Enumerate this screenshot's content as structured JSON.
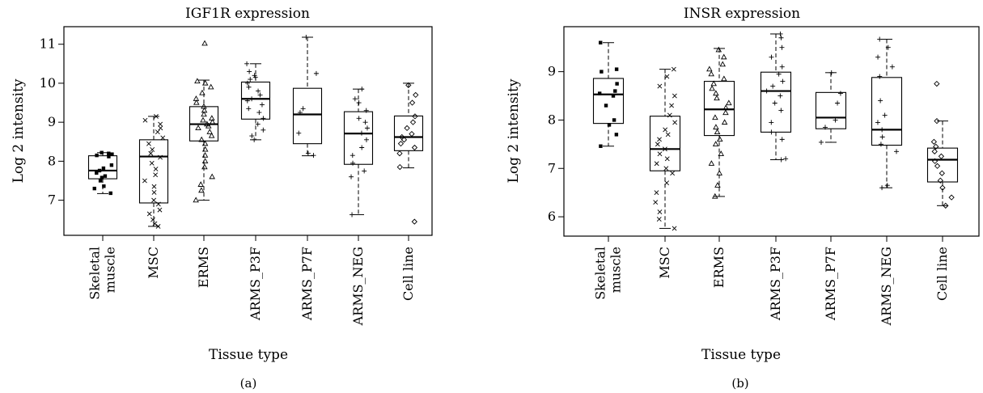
{
  "chart_data": [
    {
      "type": "box",
      "title": "IGF1R expression",
      "xlabel": "Tissue type",
      "ylabel": "Log 2 intensity",
      "panel_label": "(a)",
      "categories": [
        [
          "Skeletal",
          "muscle"
        ],
        [
          "MSC"
        ],
        [
          "ERMS"
        ],
        [
          "ARMS_P3F"
        ],
        [
          "ARMS_P7F"
        ],
        [
          "ARMS_NEG"
        ],
        [
          "Cell line"
        ]
      ],
      "ylim": [
        6.1,
        11.45
      ],
      "yticks": [
        7,
        8,
        9,
        10,
        11
      ],
      "boxes": [
        {
          "group": "Skeletal muscle",
          "marker": "square",
          "q1": 7.55,
          "median": 7.76,
          "q3": 8.14,
          "whisker_low": 7.17,
          "whisker_high": 8.22,
          "points": [
            7.18,
            7.3,
            7.36,
            7.5,
            7.58,
            7.62,
            7.7,
            7.76,
            7.82,
            7.9,
            8.12,
            8.15,
            8.18,
            8.2,
            8.22
          ]
        },
        {
          "group": "MSC",
          "marker": "x",
          "q1": 6.93,
          "median": 8.12,
          "q3": 8.55,
          "whisker_low": 6.33,
          "whisker_high": 9.15,
          "points": [
            6.33,
            6.4,
            6.5,
            6.65,
            6.75,
            6.9,
            7.0,
            7.2,
            7.35,
            7.5,
            7.65,
            7.8,
            7.95,
            8.1,
            8.2,
            8.3,
            8.45,
            8.6,
            8.75,
            8.85,
            8.95,
            9.05,
            9.15
          ]
        },
        {
          "group": "ERMS",
          "marker": "triangle",
          "q1": 8.52,
          "median": 8.95,
          "q3": 9.4,
          "whisker_low": 7.0,
          "whisker_high": 10.08,
          "points": [
            7.0,
            7.25,
            7.4,
            7.6,
            7.85,
            8.0,
            8.15,
            8.3,
            8.45,
            8.55,
            8.65,
            8.75,
            8.85,
            8.9,
            8.95,
            9.0,
            9.05,
            9.1,
            9.2,
            9.3,
            9.4,
            9.5,
            9.6,
            9.75,
            9.9,
            10.0,
            10.05,
            11.02
          ]
        },
        {
          "group": "ARMS_P3F",
          "marker": "plus",
          "q1": 9.08,
          "median": 9.6,
          "q3": 10.03,
          "whisker_low": 8.55,
          "whisker_high": 10.5,
          "points": [
            8.55,
            8.65,
            8.8,
            8.95,
            9.1,
            9.25,
            9.35,
            9.45,
            9.55,
            9.6,
            9.7,
            9.8,
            9.9,
            10.0,
            10.1,
            10.15,
            10.2,
            10.3,
            10.5
          ]
        },
        {
          "group": "ARMS_P7F",
          "marker": "plus",
          "q1": 8.45,
          "median": 9.2,
          "q3": 9.87,
          "whisker_low": 8.14,
          "whisker_high": 11.18,
          "points": [
            8.15,
            8.2,
            8.72,
            9.25,
            9.35,
            10.25,
            11.18
          ]
        },
        {
          "group": "ARMS_NEG",
          "marker": "plus",
          "q1": 7.92,
          "median": 8.71,
          "q3": 9.27,
          "whisker_low": 6.63,
          "whisker_high": 9.85,
          "points": [
            6.63,
            7.6,
            7.75,
            7.95,
            8.15,
            8.35,
            8.55,
            8.72,
            8.85,
            9.0,
            9.1,
            9.3,
            9.5,
            9.6,
            9.85
          ]
        },
        {
          "group": "Cell line",
          "marker": "diamond",
          "q1": 8.27,
          "median": 8.62,
          "q3": 9.16,
          "whisker_low": 7.83,
          "whisker_high": 10.0,
          "points": [
            6.45,
            7.85,
            8.2,
            8.35,
            8.45,
            8.55,
            8.62,
            8.7,
            8.85,
            9.0,
            9.15,
            9.5,
            9.7,
            9.95
          ]
        }
      ]
    },
    {
      "type": "box",
      "title": "INSR expression",
      "xlabel": "Tissue type",
      "ylabel": "Log 2 intensity",
      "panel_label": "(b)",
      "categories": [
        [
          "Skeletal",
          "muscle"
        ],
        [
          "MSC"
        ],
        [
          "ERMS"
        ],
        [
          "ARMS_P3F"
        ],
        [
          "ARMS_P7F"
        ],
        [
          "ARMS_NEG"
        ],
        [
          "Cell line"
        ]
      ],
      "ylim": [
        5.6,
        9.93
      ],
      "yticks": [
        6,
        7,
        8,
        9
      ],
      "boxes": [
        {
          "group": "Skeletal muscle",
          "marker": "square",
          "q1": 7.93,
          "median": 8.53,
          "q3": 8.86,
          "whisker_low": 7.46,
          "whisker_high": 9.6,
          "points": [
            7.46,
            7.7,
            7.9,
            8.0,
            8.3,
            8.5,
            8.55,
            8.6,
            8.75,
            9.0,
            9.05,
            9.6
          ]
        },
        {
          "group": "MSC",
          "marker": "x",
          "q1": 6.95,
          "median": 7.4,
          "q3": 8.08,
          "whisker_low": 5.76,
          "whisker_high": 9.05,
          "points": [
            5.76,
            5.95,
            6.1,
            6.3,
            6.5,
            6.7,
            6.9,
            7.0,
            7.1,
            7.2,
            7.3,
            7.4,
            7.5,
            7.6,
            7.7,
            7.8,
            7.95,
            8.1,
            8.3,
            8.5,
            8.7,
            8.9,
            9.05
          ]
        },
        {
          "group": "ERMS",
          "marker": "triangle",
          "q1": 7.68,
          "median": 8.22,
          "q3": 8.8,
          "whisker_low": 6.42,
          "whisker_high": 9.48,
          "points": [
            6.42,
            6.65,
            6.9,
            7.1,
            7.3,
            7.5,
            7.6,
            7.75,
            7.85,
            7.95,
            8.05,
            8.15,
            8.25,
            8.35,
            8.45,
            8.55,
            8.65,
            8.75,
            8.85,
            8.95,
            9.05,
            9.15,
            9.3,
            9.45
          ]
        },
        {
          "group": "ARMS_P3F",
          "marker": "plus",
          "q1": 7.75,
          "median": 8.6,
          "q3": 8.99,
          "whisker_low": 7.18,
          "whisker_high": 9.78,
          "points": [
            7.18,
            7.2,
            7.6,
            7.75,
            7.95,
            8.2,
            8.35,
            8.5,
            8.6,
            8.7,
            8.8,
            8.95,
            9.1,
            9.3,
            9.5,
            9.7,
            9.78
          ]
        },
        {
          "group": "ARMS_P7F",
          "marker": "plus",
          "q1": 7.82,
          "median": 8.05,
          "q3": 8.57,
          "whisker_low": 7.54,
          "whisker_high": 8.98,
          "points": [
            7.54,
            7.85,
            8.0,
            8.35,
            8.55,
            8.98
          ]
        },
        {
          "group": "ARMS_NEG",
          "marker": "plus",
          "q1": 7.48,
          "median": 7.8,
          "q3": 8.88,
          "whisker_low": 6.6,
          "whisker_high": 9.67,
          "points": [
            6.6,
            6.65,
            7.35,
            7.5,
            7.65,
            7.8,
            7.95,
            8.1,
            8.4,
            8.9,
            9.1,
            9.3,
            9.5,
            9.67
          ]
        },
        {
          "group": "Cell line",
          "marker": "diamond",
          "q1": 6.72,
          "median": 7.18,
          "q3": 7.42,
          "whisker_low": 6.23,
          "whisker_high": 7.98,
          "points": [
            6.23,
            6.4,
            6.6,
            6.75,
            6.9,
            7.05,
            7.15,
            7.25,
            7.35,
            7.45,
            7.55,
            7.98,
            8.75
          ]
        }
      ]
    }
  ]
}
